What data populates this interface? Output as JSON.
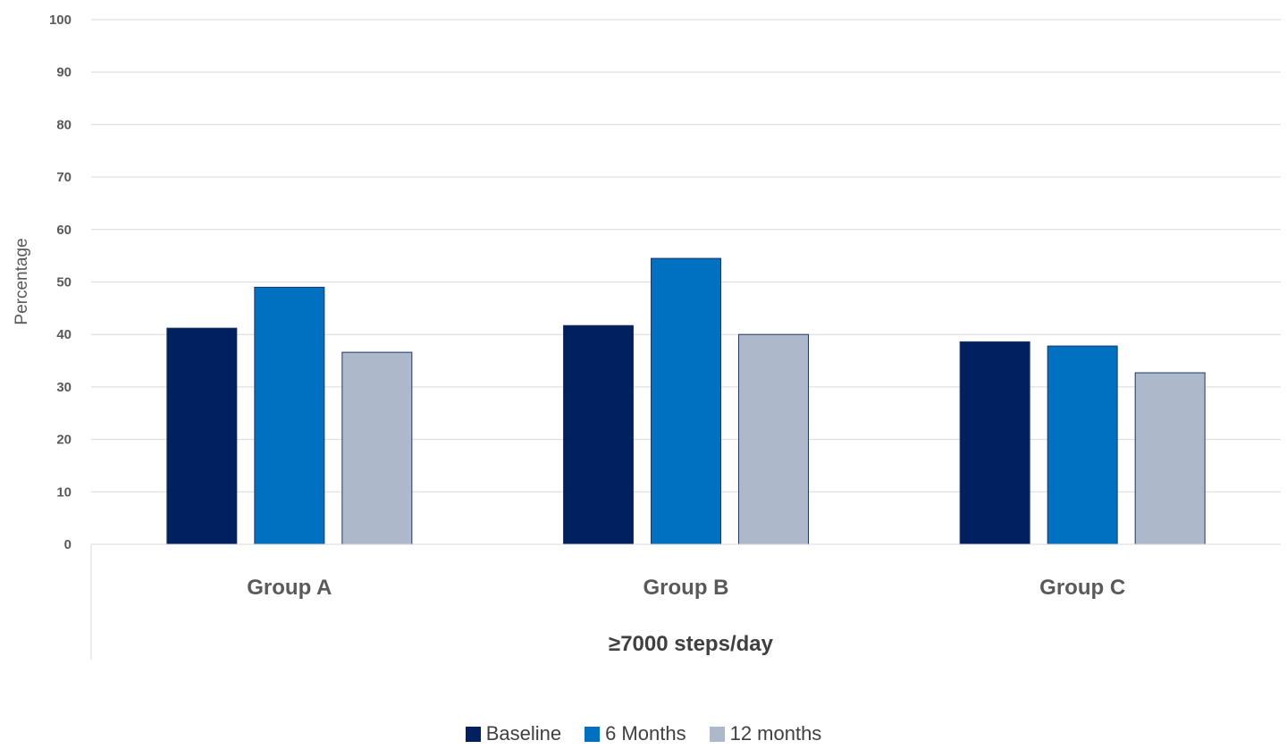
{
  "chart_data": {
    "type": "bar",
    "categories": [
      "Group A",
      "Group B",
      "Group C"
    ],
    "group_label": "≥7000 steps/day",
    "ylabel": "Percentage",
    "ylim": [
      0,
      100
    ],
    "yticks": [
      0,
      10,
      20,
      30,
      40,
      50,
      60,
      70,
      80,
      90,
      100
    ],
    "grid": true,
    "legend_position": "bottom",
    "series": [
      {
        "name": "Baseline",
        "color": "#002060",
        "values": [
          41.2,
          41.7,
          38.6
        ]
      },
      {
        "name": "6 Months",
        "color": "#0070C0",
        "values": [
          49.0,
          54.5,
          37.8
        ]
      },
      {
        "name": "12 months",
        "color": "#ADB9CA",
        "values": [
          36.6,
          40.0,
          32.7
        ]
      }
    ]
  }
}
